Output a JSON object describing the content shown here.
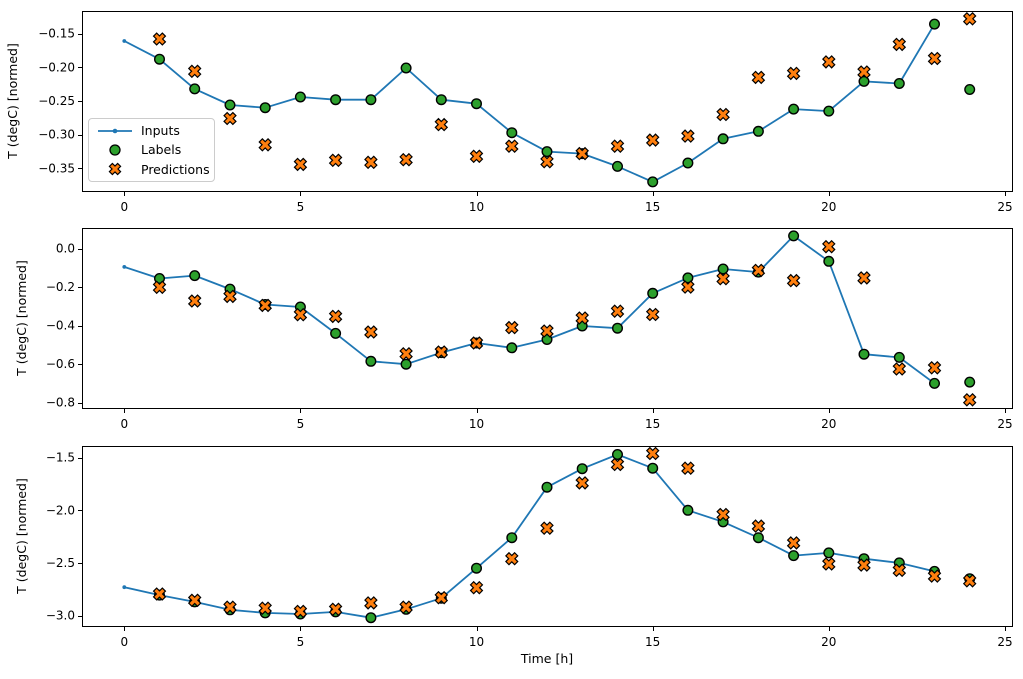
{
  "figure": {
    "background": "#ffffff",
    "xlabel": "Time [h]",
    "ylabel": "T (degC) [normed]",
    "legend": {
      "items": [
        {
          "label": "Inputs",
          "kind": "line-dot",
          "color": "#1f77b4"
        },
        {
          "label": "Labels",
          "kind": "circle",
          "color": "#2ca02c",
          "edge": "#000000"
        },
        {
          "label": "Predictions",
          "kind": "x",
          "color": "#ff7f0e",
          "edge": "#000000"
        }
      ]
    }
  },
  "chart_data": [
    {
      "type": "line",
      "title": "",
      "xlabel": "",
      "ylabel": "T (degC) [normed]",
      "xlim": [
        -1.2,
        25.2
      ],
      "ylim": [
        -0.3835,
        -0.1165
      ],
      "x_ticks": [
        0,
        5,
        10,
        15,
        20,
        25
      ],
      "x_tick_labels": [
        "0",
        "5",
        "10",
        "15",
        "20",
        "25"
      ],
      "y_ticks": [
        -0.15,
        -0.2,
        -0.25,
        -0.3,
        -0.35
      ],
      "y_tick_labels": [
        "−0.15",
        "−0.20",
        "−0.25",
        "−0.30",
        "−0.35"
      ],
      "grid": false,
      "legend_position": "center-left",
      "series": [
        {
          "name": "Inputs",
          "kind": "line",
          "marker": "dot",
          "color": "#1f77b4",
          "x": [
            0,
            1,
            2,
            3,
            4,
            5,
            6,
            7,
            8,
            9,
            10,
            11,
            12,
            13,
            14,
            15,
            16,
            17,
            18,
            19,
            20,
            21,
            22,
            23
          ],
          "y": [
            -0.161,
            -0.188,
            -0.232,
            -0.256,
            -0.26,
            -0.244,
            -0.248,
            -0.248,
            -0.201,
            -0.248,
            -0.254,
            -0.297,
            -0.325,
            -0.328,
            -0.347,
            -0.37,
            -0.342,
            -0.306,
            -0.295,
            -0.262,
            -0.265,
            -0.221,
            -0.224,
            -0.136
          ]
        },
        {
          "name": "Labels",
          "kind": "scatter",
          "marker": "circle",
          "color": "#2ca02c",
          "edge": "#000000",
          "x": [
            1,
            2,
            3,
            4,
            5,
            6,
            7,
            8,
            9,
            10,
            11,
            12,
            13,
            14,
            15,
            16,
            17,
            18,
            19,
            20,
            21,
            22,
            23,
            24
          ],
          "y": [
            -0.188,
            -0.232,
            -0.256,
            -0.26,
            -0.244,
            -0.248,
            -0.248,
            -0.201,
            -0.248,
            -0.254,
            -0.297,
            -0.325,
            -0.328,
            -0.347,
            -0.37,
            -0.342,
            -0.306,
            -0.295,
            -0.262,
            -0.265,
            -0.221,
            -0.224,
            -0.136,
            -0.233
          ]
        },
        {
          "name": "Predictions",
          "kind": "scatter",
          "marker": "X",
          "color": "#ff7f0e",
          "edge": "#000000",
          "x": [
            1,
            2,
            3,
            4,
            5,
            6,
            7,
            8,
            9,
            10,
            11,
            12,
            13,
            14,
            15,
            16,
            17,
            18,
            19,
            20,
            21,
            22,
            23,
            24
          ],
          "y": [
            -0.158,
            -0.206,
            -0.276,
            -0.315,
            -0.344,
            -0.338,
            -0.341,
            -0.337,
            -0.285,
            -0.332,
            -0.317,
            -0.34,
            -0.328,
            -0.317,
            -0.308,
            -0.302,
            -0.27,
            -0.215,
            -0.209,
            -0.192,
            -0.207,
            -0.166,
            -0.187,
            -0.128
          ]
        }
      ]
    },
    {
      "type": "line",
      "title": "",
      "xlabel": "",
      "ylabel": "T (degC) [normed]",
      "xlim": [
        -1.2,
        25.2
      ],
      "ylim": [
        -0.8275,
        0.107
      ],
      "x_ticks": [
        0,
        5,
        10,
        15,
        20,
        25
      ],
      "x_tick_labels": [
        "0",
        "5",
        "10",
        "15",
        "20",
        "25"
      ],
      "y_ticks": [
        0.0,
        -0.2,
        -0.4,
        -0.6,
        -0.8
      ],
      "y_tick_labels": [
        "0.0",
        "−0.2",
        "−0.4",
        "−0.6",
        "−0.8"
      ],
      "grid": false,
      "series": [
        {
          "name": "Inputs",
          "kind": "line",
          "marker": "dot",
          "color": "#1f77b4",
          "x": [
            0,
            1,
            2,
            3,
            4,
            5,
            6,
            7,
            8,
            9,
            10,
            11,
            12,
            13,
            14,
            15,
            16,
            17,
            18,
            19,
            20,
            21,
            22,
            23
          ],
          "y": [
            -0.095,
            -0.155,
            -0.14,
            -0.21,
            -0.29,
            -0.303,
            -0.44,
            -0.585,
            -0.6,
            -0.54,
            -0.49,
            -0.515,
            -0.472,
            -0.402,
            -0.413,
            -0.232,
            -0.152,
            -0.106,
            -0.122,
            0.066,
            -0.066,
            -0.548,
            -0.565,
            -0.7
          ]
        },
        {
          "name": "Labels",
          "kind": "scatter",
          "marker": "circle",
          "color": "#2ca02c",
          "edge": "#000000",
          "x": [
            1,
            2,
            3,
            4,
            5,
            6,
            7,
            8,
            9,
            10,
            11,
            12,
            13,
            14,
            15,
            16,
            17,
            18,
            19,
            20,
            21,
            22,
            23,
            24
          ],
          "y": [
            -0.155,
            -0.14,
            -0.21,
            -0.29,
            -0.303,
            -0.44,
            -0.585,
            -0.6,
            -0.54,
            -0.49,
            -0.515,
            -0.472,
            -0.402,
            -0.413,
            -0.232,
            -0.152,
            -0.106,
            -0.122,
            0.066,
            -0.066,
            -0.548,
            -0.565,
            -0.7,
            -0.693
          ]
        },
        {
          "name": "Predictions",
          "kind": "scatter",
          "marker": "X",
          "color": "#ff7f0e",
          "edge": "#000000",
          "x": [
            1,
            2,
            3,
            4,
            5,
            6,
            7,
            8,
            9,
            10,
            11,
            12,
            13,
            14,
            15,
            16,
            17,
            18,
            19,
            20,
            21,
            22,
            23,
            24
          ],
          "y": [
            -0.201,
            -0.272,
            -0.248,
            -0.295,
            -0.343,
            -0.352,
            -0.433,
            -0.546,
            -0.537,
            -0.49,
            -0.41,
            -0.428,
            -0.36,
            -0.325,
            -0.342,
            -0.2,
            -0.156,
            -0.113,
            -0.166,
            0.01,
            -0.152,
            -0.625,
            -0.619,
            -0.785
          ]
        }
      ]
    },
    {
      "type": "line",
      "title": "",
      "xlabel": "Time [h]",
      "ylabel": "T (degC) [normed]",
      "xlim": [
        -1.2,
        25.2
      ],
      "ylim": [
        -3.099,
        -1.389
      ],
      "x_ticks": [
        0,
        5,
        10,
        15,
        20,
        25
      ],
      "x_tick_labels": [
        "0",
        "5",
        "10",
        "15",
        "20",
        "25"
      ],
      "y_ticks": [
        -1.5,
        -2.0,
        -2.5,
        -3.0
      ],
      "y_tick_labels": [
        "−1.5",
        "−2.0",
        "−2.5",
        "−3.0"
      ],
      "grid": false,
      "series": [
        {
          "name": "Inputs",
          "kind": "line",
          "marker": "dot",
          "color": "#1f77b4",
          "x": [
            0,
            1,
            2,
            3,
            4,
            5,
            6,
            7,
            8,
            9,
            10,
            11,
            12,
            13,
            14,
            15,
            16,
            17,
            18,
            19,
            20,
            21,
            22,
            23
          ],
          "y": [
            -2.73,
            -2.805,
            -2.87,
            -2.945,
            -2.975,
            -2.985,
            -2.965,
            -3.02,
            -2.94,
            -2.835,
            -2.55,
            -2.26,
            -1.78,
            -1.605,
            -1.47,
            -1.6,
            -2.0,
            -2.11,
            -2.26,
            -2.43,
            -2.405,
            -2.46,
            -2.5,
            -2.58
          ]
        },
        {
          "name": "Labels",
          "kind": "scatter",
          "marker": "circle",
          "color": "#2ca02c",
          "edge": "#000000",
          "x": [
            1,
            2,
            3,
            4,
            5,
            6,
            7,
            8,
            9,
            10,
            11,
            12,
            13,
            14,
            15,
            16,
            17,
            18,
            19,
            20,
            21,
            22,
            23,
            24
          ],
          "y": [
            -2.805,
            -2.87,
            -2.945,
            -2.975,
            -2.985,
            -2.965,
            -3.02,
            -2.94,
            -2.835,
            -2.55,
            -2.26,
            -1.78,
            -1.605,
            -1.47,
            -1.6,
            -2.0,
            -2.11,
            -2.26,
            -2.43,
            -2.405,
            -2.46,
            -2.5,
            -2.58,
            -2.65
          ]
        },
        {
          "name": "Predictions",
          "kind": "scatter",
          "marker": "X",
          "color": "#ff7f0e",
          "edge": "#000000",
          "x": [
            1,
            2,
            3,
            4,
            5,
            6,
            7,
            8,
            9,
            10,
            11,
            12,
            13,
            14,
            15,
            16,
            17,
            18,
            19,
            20,
            21,
            22,
            23,
            24
          ],
          "y": [
            -2.795,
            -2.855,
            -2.92,
            -2.93,
            -2.96,
            -2.94,
            -2.88,
            -2.92,
            -2.83,
            -2.735,
            -2.46,
            -2.17,
            -1.74,
            -1.565,
            -1.46,
            -1.6,
            -2.04,
            -2.15,
            -2.31,
            -2.51,
            -2.52,
            -2.57,
            -2.625,
            -2.67
          ]
        }
      ]
    }
  ]
}
